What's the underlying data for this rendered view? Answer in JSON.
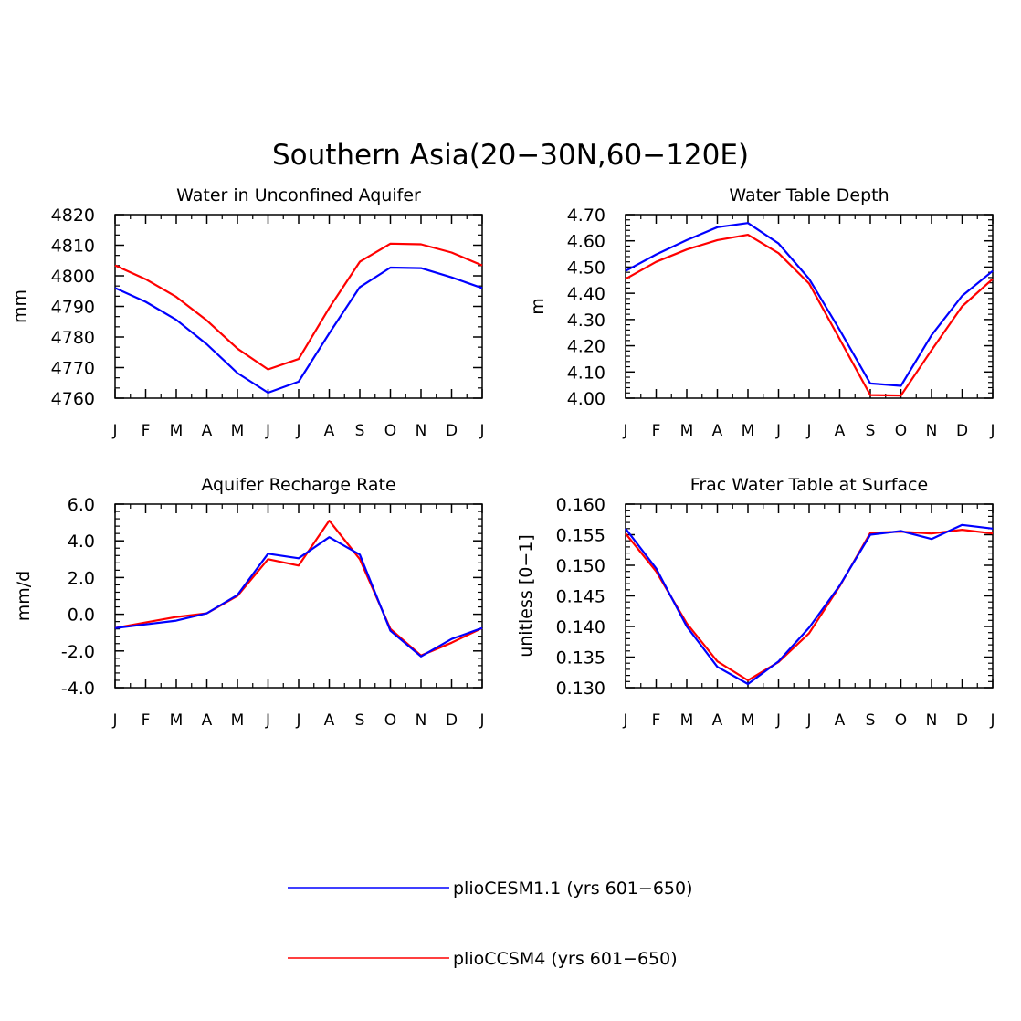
{
  "title": "Southern Asia(20−30N,60−120E)",
  "colors": {
    "series1": "#0000ff",
    "series2": "#ff0000",
    "axis": "#000000"
  },
  "legend": [
    {
      "label": "plioCESM1.1 (yrs 601−650)",
      "color": "#0000ff"
    },
    {
      "label": "plioCCSM4 (yrs 601−650)",
      "color": "#ff0000"
    }
  ],
  "chart_data": [
    {
      "type": "line",
      "title": "Water in Unconfined Aquifer",
      "ylabel": "mm",
      "xlabel": "",
      "categories": [
        "J",
        "F",
        "M",
        "A",
        "M",
        "J",
        "J",
        "A",
        "S",
        "O",
        "N",
        "D",
        "J"
      ],
      "ylim": [
        4760,
        4820
      ],
      "yticks": [
        4760,
        4770,
        4780,
        4790,
        4800,
        4810,
        4820
      ],
      "ytick_labels": [
        "4760",
        "4770",
        "4780",
        "4790",
        "4800",
        "4810",
        "4820"
      ],
      "yminor": 2,
      "series": [
        {
          "name": "plioCESM1.1 (yrs 601−650)",
          "color": "#0000ff",
          "values": [
            4796,
            4791.5,
            4785.6,
            4777.6,
            4768.2,
            4761.8,
            4765.4,
            4781.2,
            4796.3,
            4802.7,
            4802.5,
            4799.5,
            4796
          ]
        },
        {
          "name": "plioCCSM4 (yrs 601−650)",
          "color": "#ff0000",
          "values": [
            4803.4,
            4798.9,
            4793.1,
            4785.4,
            4776.2,
            4769.4,
            4772.8,
            4789.5,
            4804.6,
            4810.5,
            4810.3,
            4807.6,
            4803.4
          ]
        }
      ]
    },
    {
      "type": "line",
      "title": "Water Table Depth",
      "ylabel": "m",
      "xlabel": "",
      "categories": [
        "J",
        "F",
        "M",
        "A",
        "M",
        "J",
        "J",
        "A",
        "S",
        "O",
        "N",
        "D",
        "J"
      ],
      "ylim": [
        4.0,
        4.7
      ],
      "yticks": [
        4.0,
        4.1,
        4.2,
        4.3,
        4.4,
        4.5,
        4.6,
        4.7
      ],
      "ytick_labels": [
        "4.00",
        "4.10",
        "4.20",
        "4.30",
        "4.40",
        "4.50",
        "4.60",
        "4.70"
      ],
      "yminor": 4,
      "series": [
        {
          "name": "plioCESM1.1 (yrs 601−650)",
          "color": "#0000ff",
          "values": [
            4.485,
            4.548,
            4.603,
            4.652,
            4.668,
            4.59,
            4.455,
            4.26,
            4.056,
            4.047,
            4.24,
            4.39,
            4.485
          ]
        },
        {
          "name": "plioCCSM4 (yrs 601−650)",
          "color": "#ff0000",
          "values": [
            4.455,
            4.52,
            4.567,
            4.603,
            4.623,
            4.553,
            4.437,
            4.225,
            4.012,
            4.01,
            4.183,
            4.35,
            4.455
          ]
        }
      ]
    },
    {
      "type": "line",
      "title": "Aquifer Recharge Rate",
      "ylabel": "mm/d",
      "xlabel": "",
      "categories": [
        "J",
        "F",
        "M",
        "A",
        "M",
        "J",
        "J",
        "A",
        "S",
        "O",
        "N",
        "D",
        "J"
      ],
      "ylim": [
        -4,
        6
      ],
      "yticks": [
        -4,
        -2,
        0,
        2,
        4,
        6
      ],
      "ytick_labels": [
        "-4.0",
        "-2.0",
        "0.0",
        "2.0",
        "4.0",
        "6.0"
      ],
      "yminor": 4,
      "series": [
        {
          "name": "plioCESM1.1 (yrs 601−650)",
          "color": "#0000ff",
          "values": [
            -0.75,
            -0.55,
            -0.35,
            0.05,
            1.05,
            3.3,
            3.05,
            4.2,
            3.25,
            -0.9,
            -2.3,
            -1.35,
            -0.75
          ]
        },
        {
          "name": "plioCCSM4 (yrs 601−650)",
          "color": "#ff0000",
          "values": [
            -0.75,
            -0.45,
            -0.15,
            0.05,
            1.0,
            3.0,
            2.65,
            5.1,
            3.0,
            -0.8,
            -2.25,
            -1.55,
            -0.75
          ]
        }
      ]
    },
    {
      "type": "line",
      "title": "Frac Water Table at Surface",
      "ylabel": "unitless [0−1]",
      "xlabel": "",
      "categories": [
        "J",
        "F",
        "M",
        "A",
        "M",
        "J",
        "J",
        "A",
        "S",
        "O",
        "N",
        "D",
        "J"
      ],
      "ylim": [
        0.13,
        0.16
      ],
      "yticks": [
        0.13,
        0.135,
        0.14,
        0.145,
        0.15,
        0.155,
        0.16
      ],
      "ytick_labels": [
        "0.130",
        "0.135",
        "0.140",
        "0.145",
        "0.150",
        "0.155",
        "0.160"
      ],
      "yminor": 4,
      "series": [
        {
          "name": "plioCESM1.1 (yrs 601−650)",
          "color": "#0000ff",
          "values": [
            0.156,
            0.1495,
            0.14,
            0.1334,
            0.1306,
            0.1343,
            0.1398,
            0.1467,
            0.155,
            0.1556,
            0.1543,
            0.1566,
            0.156
          ]
        },
        {
          "name": "plioCCSM4 (yrs 601−650)",
          "color": "#ff0000",
          "values": [
            0.1552,
            0.149,
            0.1405,
            0.1343,
            0.1312,
            0.1342,
            0.1389,
            0.1466,
            0.1553,
            0.1555,
            0.1552,
            0.1558,
            0.1552
          ]
        }
      ]
    }
  ]
}
